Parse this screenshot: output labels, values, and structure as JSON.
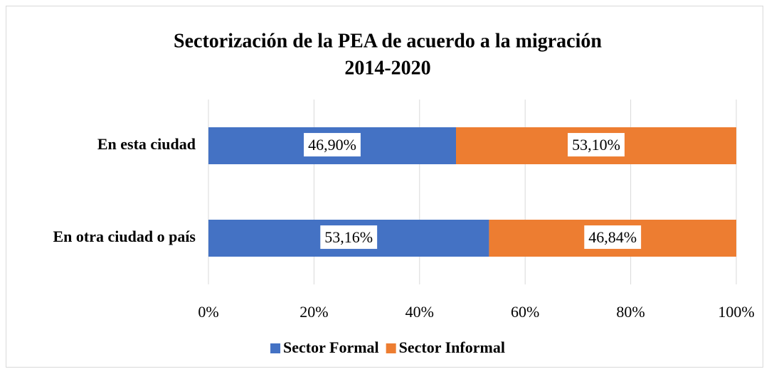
{
  "chart_data": {
    "type": "stacked_barh",
    "title": [
      "Sectorización de la PEA de acuerdo a la migración",
      "2014-2020"
    ],
    "categories": [
      "En esta ciudad",
      "En otra ciudad o país"
    ],
    "series": [
      {
        "name": "Sector Formal",
        "color": "#4472c4",
        "values": [
          46.9,
          53.16
        ],
        "value_labels": [
          "46,90%",
          "53,16%"
        ]
      },
      {
        "name": "Sector Informal",
        "color": "#ed7d31",
        "values": [
          53.1,
          46.84
        ],
        "value_labels": [
          "53,10%",
          "46,84%"
        ]
      }
    ],
    "xlim": [
      0,
      100
    ],
    "xticks": [
      {
        "value": 0,
        "label": "0%"
      },
      {
        "value": 20,
        "label": "20%"
      },
      {
        "value": 40,
        "label": "40%"
      },
      {
        "value": 60,
        "label": "60%"
      },
      {
        "value": 80,
        "label": "80%"
      },
      {
        "value": 100,
        "label": "100%"
      }
    ],
    "grid": true,
    "legend": "bottom"
  }
}
